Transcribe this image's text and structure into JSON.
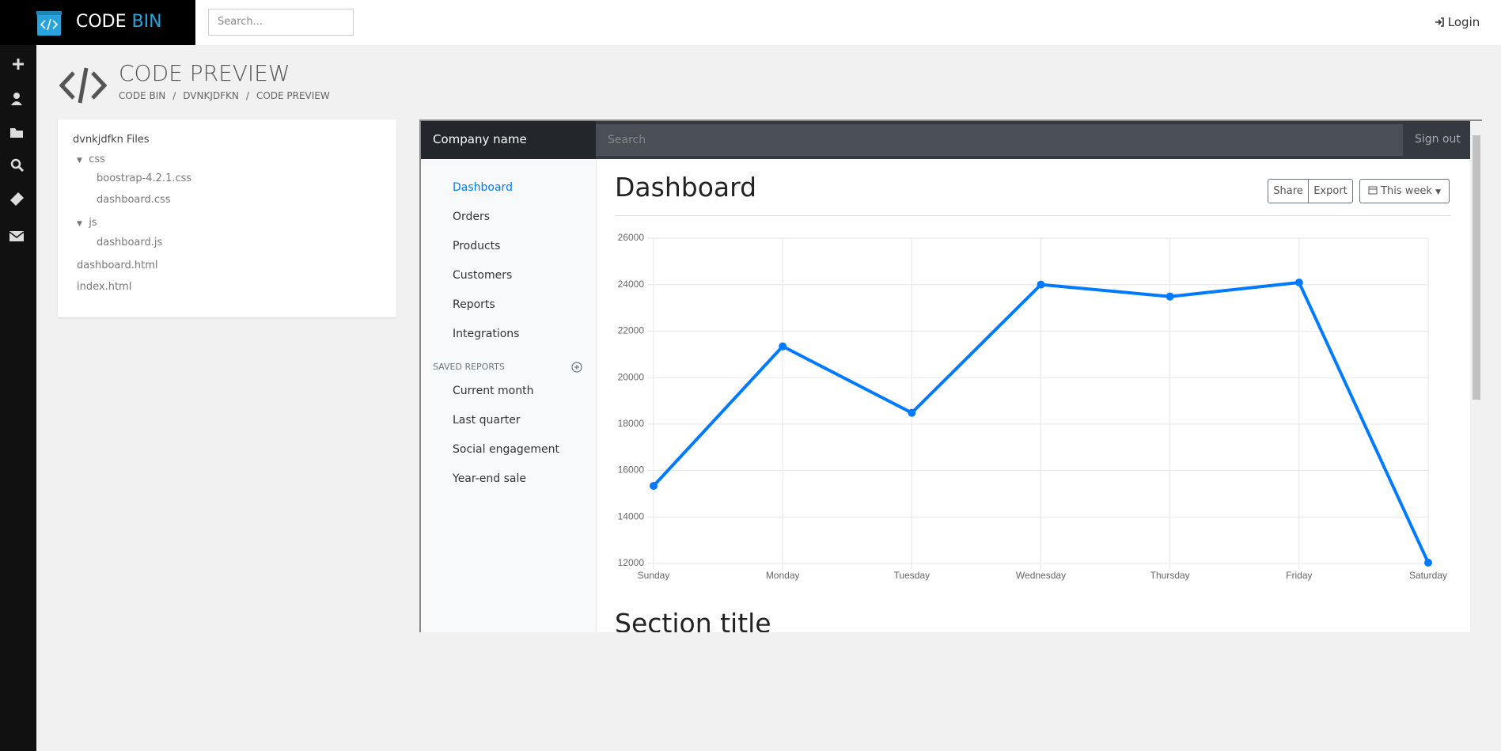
{
  "header": {
    "logo_first": "CODE",
    "logo_second": "BIN",
    "search_placeholder": "Search...",
    "login": "Login"
  },
  "page": {
    "title": "CODE PREVIEW",
    "breadcrumb": [
      "CODE BIN",
      "DVNKJDFKN",
      "CODE PREVIEW"
    ]
  },
  "file_tree": {
    "title": "dvnkjdfkn Files",
    "folders": [
      {
        "name": "css",
        "files": [
          "boostrap-4.2.1.css",
          "dashboard.css"
        ]
      },
      {
        "name": "js",
        "files": [
          "dashboard.js"
        ]
      }
    ],
    "files": [
      "dashboard.html",
      "index.html"
    ]
  },
  "preview": {
    "brand": "Company name",
    "search_placeholder": "Search",
    "sign_out": "Sign out",
    "nav": [
      "Dashboard",
      "Orders",
      "Products",
      "Customers",
      "Reports",
      "Integrations"
    ],
    "saved_reports_heading": "SAVED REPORTS",
    "saved_reports": [
      "Current month",
      "Last quarter",
      "Social engagement",
      "Year-end sale"
    ],
    "heading": "Dashboard",
    "buttons": [
      "Share",
      "Export",
      "This week"
    ],
    "section_title": "Section title"
  },
  "chart_data": {
    "type": "line",
    "categories": [
      "Sunday",
      "Monday",
      "Tuesday",
      "Wednesday",
      "Thursday",
      "Friday",
      "Saturday"
    ],
    "values": [
      15339,
      21345,
      18483,
      24003,
      23489,
      24092,
      12034
    ],
    "color": "#007bff",
    "ylim": [
      12000,
      26000
    ],
    "yticks": [
      12000,
      14000,
      16000,
      18000,
      20000,
      22000,
      24000,
      26000
    ],
    "grid": true
  }
}
